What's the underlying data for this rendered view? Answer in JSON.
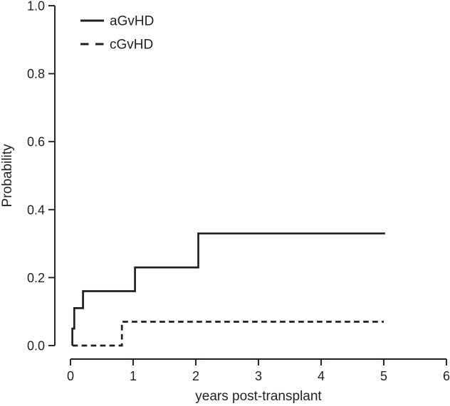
{
  "figure": {
    "background": "#ffffff",
    "ink_color": "#231f20"
  },
  "chart_data": {
    "type": "line",
    "subtype": "step",
    "title": "",
    "xlabel": "years post-transplant",
    "ylabel": "Probability",
    "xlim": [
      0,
      6
    ],
    "ylim": [
      0,
      1
    ],
    "x_tick_values": [
      0,
      1,
      2,
      3,
      4,
      5,
      6
    ],
    "x_tick_labels": [
      "0",
      "1",
      "2",
      "3",
      "4",
      "5",
      "6"
    ],
    "y_tick_values": [
      0,
      0.2,
      0.4,
      0.6,
      0.8,
      1
    ],
    "y_tick_labels": [
      "0.0",
      "0.2",
      "0.4",
      "0.6",
      "0.8",
      "1.0"
    ],
    "grid": false,
    "legend_position": "top-left",
    "legend_entries": [
      "aGvHD",
      "cGvHD"
    ],
    "series": [
      {
        "name": "aGvHD",
        "line_style": "solid",
        "color": "#231f20",
        "points": [
          [
            0.03,
            0.0
          ],
          [
            0.03,
            0.05
          ],
          [
            0.06,
            0.05
          ],
          [
            0.06,
            0.11
          ],
          [
            0.2,
            0.11
          ],
          [
            0.2,
            0.16
          ],
          [
            1.03,
            0.16
          ],
          [
            1.03,
            0.23
          ],
          [
            2.04,
            0.23
          ],
          [
            2.04,
            0.33
          ],
          [
            5.02,
            0.33
          ]
        ]
      },
      {
        "name": "cGvHD",
        "line_style": "dashed",
        "color": "#231f20",
        "points": [
          [
            0.03,
            0.0
          ],
          [
            0.82,
            0.0
          ],
          [
            0.82,
            0.07
          ],
          [
            5.0,
            0.07
          ]
        ]
      }
    ]
  }
}
